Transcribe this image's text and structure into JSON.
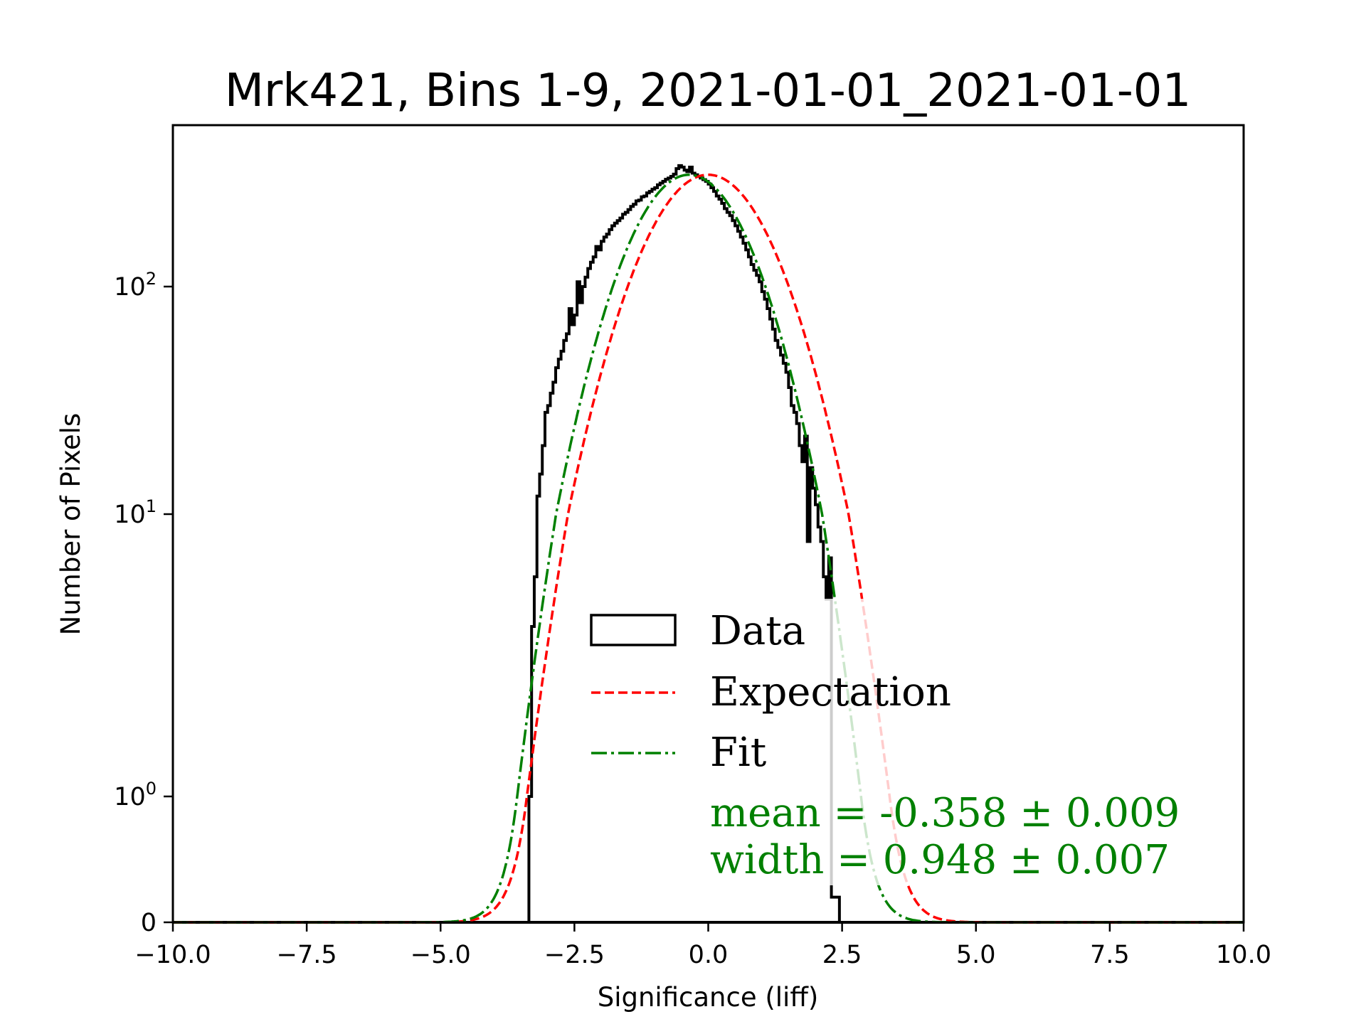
{
  "chart_data": {
    "type": "histogram",
    "title": "Mrk421, Bins 1-9, 2021-01-01_2021-01-01",
    "xlabel": "Significance (liff)",
    "ylabel": "Number of Pixels",
    "xlim": [
      -10,
      10
    ],
    "yscale": "symlog",
    "ylim": [
      0,
      500
    ],
    "x_ticks": [
      -10,
      -7.5,
      -5,
      -2.5,
      0,
      2.5,
      5,
      7.5,
      10
    ],
    "x_tick_labels": [
      "−10.0",
      "−7.5",
      "−5.0",
      "−2.5",
      "0.0",
      "2.5",
      "5.0",
      "7.5",
      "10.0"
    ],
    "y_ticks": [
      0,
      1,
      10,
      100
    ],
    "y_tick_labels": [
      "0",
      "10^0",
      "10^1",
      "10^2"
    ],
    "grid": false,
    "histogram": {
      "name": "Data",
      "color": "#000000",
      "bin_start": -3.35,
      "bin_width": 0.05,
      "counts": [
        1,
        4,
        6,
        12,
        15,
        20,
        28,
        30,
        34,
        38,
        44,
        48,
        52,
        58,
        62,
        80,
        68,
        75,
        105,
        85,
        100,
        110,
        120,
        128,
        135,
        150,
        145,
        158,
        165,
        170,
        178,
        185,
        190,
        195,
        200,
        208,
        212,
        218,
        225,
        230,
        238,
        240,
        248,
        250,
        258,
        262,
        268,
        272,
        280,
        285,
        290,
        296,
        300,
        305,
        312,
        330,
        340,
        335,
        325,
        320,
        335,
        315,
        310,
        305,
        300,
        295,
        290,
        282,
        272,
        262,
        250,
        242,
        232,
        220,
        212,
        205,
        195,
        185,
        175,
        165,
        155,
        145,
        135,
        125,
        118,
        112,
        105,
        95,
        88,
        80,
        72,
        65,
        58,
        54,
        50,
        46,
        42,
        36,
        30,
        28,
        25,
        20,
        17,
        22,
        8,
        16,
        13,
        11,
        9,
        8,
        6,
        5,
        7,
        0.2,
        0.2,
        0.2,
        0
      ]
    },
    "curves": [
      {
        "name": "Expectation",
        "color": "#ff0000",
        "style": "dashed",
        "amplitude": 310,
        "mean": 0.0,
        "width": 1.0
      },
      {
        "name": "Fit",
        "color": "#008000",
        "style": "dashdot",
        "amplitude": 310,
        "mean": -0.358,
        "width": 0.948
      }
    ],
    "legend": {
      "placement": "lower-right-center",
      "entries": [
        "Data",
        "Expectation",
        "Fit"
      ]
    },
    "annotations": {
      "mean_text": "mean = -0.358 ± 0.009",
      "width_text": "width = 0.948 ± 0.007",
      "color": "#008000"
    }
  }
}
